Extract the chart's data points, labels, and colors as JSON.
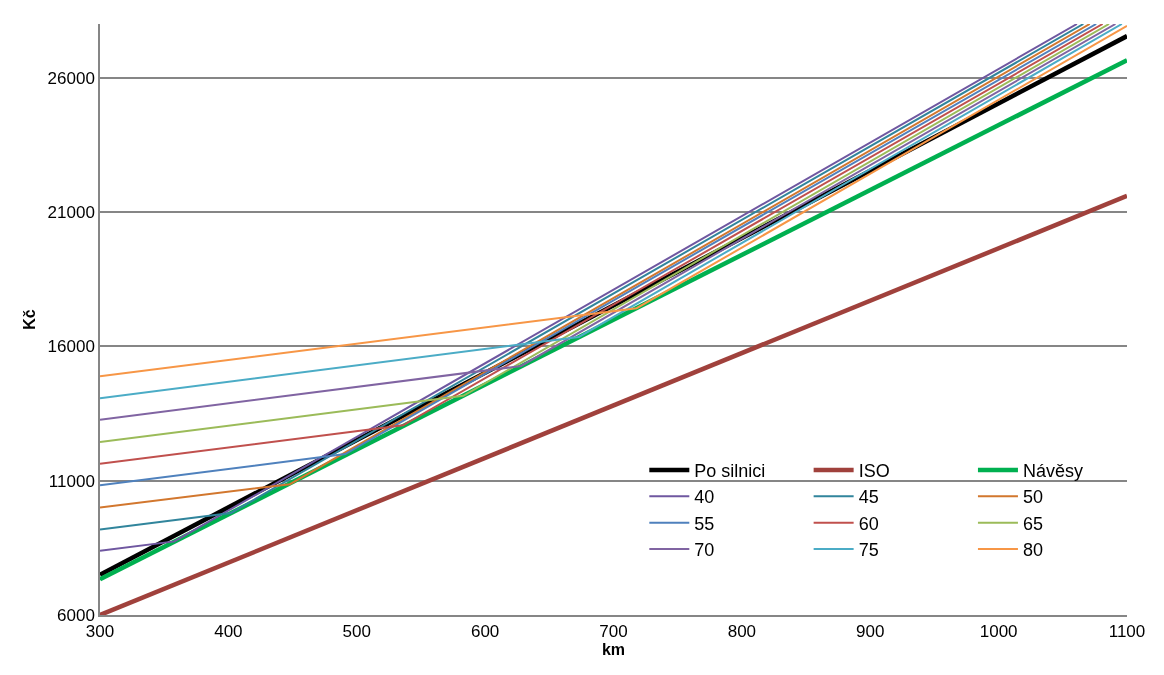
{
  "chart_data": {
    "type": "line",
    "xlabel": "km",
    "ylabel": "Kč",
    "xlim": [
      300,
      1100
    ],
    "xticks": [
      300,
      400,
      500,
      600,
      700,
      800,
      900,
      1000,
      1100
    ],
    "ylim": [
      6000,
      28000
    ],
    "yticks": [
      6000,
      11000,
      16000,
      21000,
      26000
    ],
    "grid": "y",
    "legend": "bottom right",
    "marker": "none",
    "line_style": "solid",
    "series": [
      {
        "name": "Po silnici",
        "color": "#000000",
        "x": [
          300,
          1100
        ],
        "values": [
          7500,
          27550
        ]
      },
      {
        "name": "ISO",
        "color": "#a0413c",
        "x": [
          300,
          1100
        ],
        "values": [
          6000,
          21600
        ]
      },
      {
        "name": "Návěsy",
        "color": "#00b050",
        "x": [
          300,
          1100
        ],
        "values": [
          7330,
          26650
        ]
      },
      {
        "name": "40",
        "color": "#6f57a0",
        "x": [
          300,
          358,
          1061
        ],
        "values": [
          8390,
          8740,
          28000
        ]
      },
      {
        "name": "45",
        "color": "#31859c",
        "x": [
          300,
          402,
          1066
        ],
        "values": [
          9180,
          9800,
          28000
        ]
      },
      {
        "name": "50",
        "color": "#d2772e",
        "x": [
          300,
          448,
          1071
        ],
        "values": [
          10000,
          10870,
          28000
        ]
      },
      {
        "name": "55",
        "color": "#4f81bd",
        "x": [
          300,
          491,
          1076
        ],
        "values": [
          10830,
          11990,
          28000
        ]
      },
      {
        "name": "60",
        "color": "#c0504d",
        "x": [
          300,
          536,
          1081
        ],
        "values": [
          11630,
          13060,
          28000
        ]
      },
      {
        "name": "65",
        "color": "#9bbb59",
        "x": [
          300,
          583,
          1086
        ],
        "values": [
          12440,
          14160,
          28000
        ]
      },
      {
        "name": "70",
        "color": "#8064a2",
        "x": [
          300,
          628,
          1091
        ],
        "values": [
          13270,
          15270,
          28000
        ]
      },
      {
        "name": "75",
        "color": "#4bacc6",
        "x": [
          300,
          673,
          1096
        ],
        "values": [
          14070,
          16350,
          28000
        ]
      },
      {
        "name": "80",
        "color": "#f79646",
        "x": [
          300,
          718,
          1100
        ],
        "values": [
          14890,
          17420,
          27930
        ]
      }
    ]
  }
}
